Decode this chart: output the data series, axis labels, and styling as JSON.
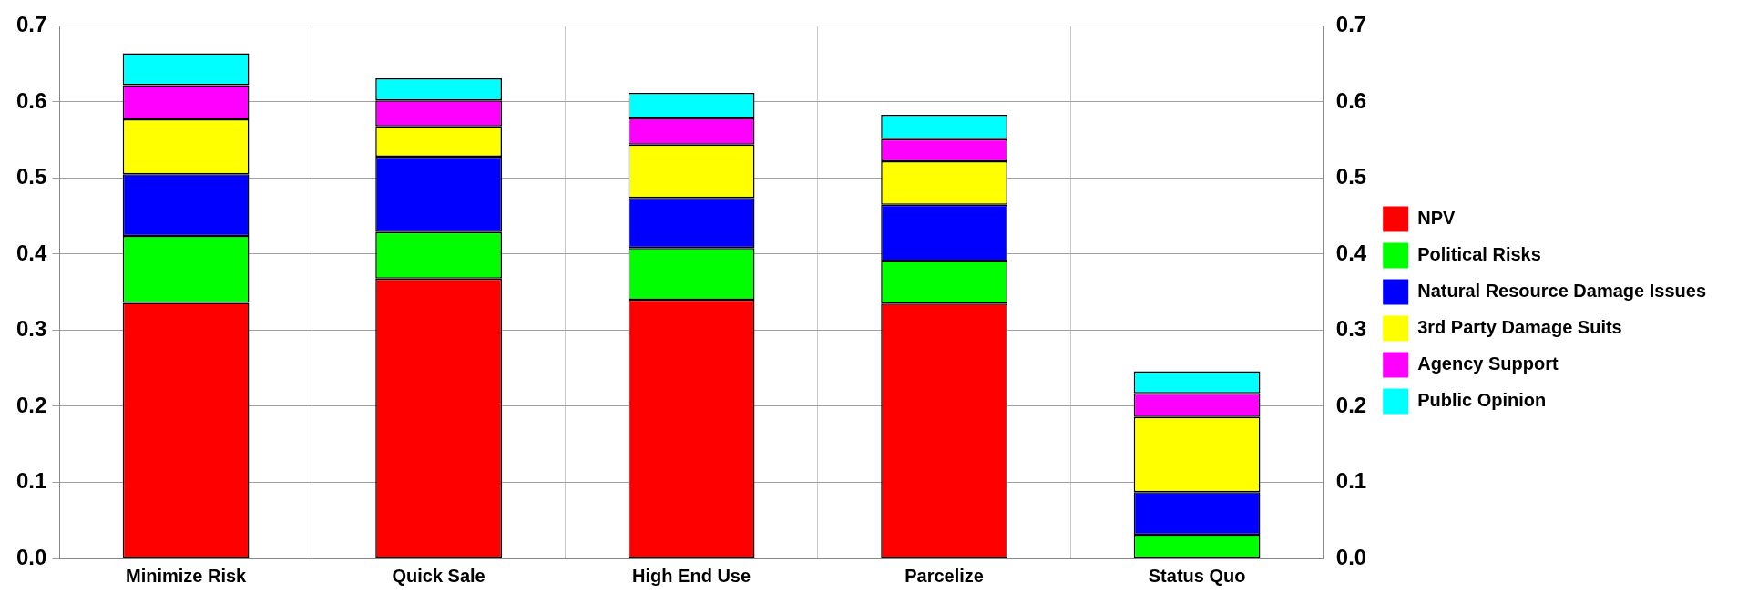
{
  "chart_data": {
    "type": "bar",
    "stacked": true,
    "categories": [
      "Minimize Risk",
      "Quick Sale",
      "High End Use",
      "Parcelize",
      "Status Quo"
    ],
    "series": [
      {
        "name": "NPV",
        "color": "#ff0000",
        "values": [
          0.336,
          0.368,
          0.34,
          0.335,
          0
        ]
      },
      {
        "name": "Political Risks",
        "color": "#00ff00",
        "values": [
          0.088,
          0.061,
          0.068,
          0.056,
          0.031
        ]
      },
      {
        "name": "Natural Resource Damage Issues",
        "color": "#0000ff",
        "values": [
          0.081,
          0.099,
          0.066,
          0.074,
          0.056
        ]
      },
      {
        "name": "3rd Party Damage Suits",
        "color": "#ffff00",
        "values": [
          0.072,
          0.04,
          0.07,
          0.057,
          0.099
        ]
      },
      {
        "name": "Agency Support",
        "color": "#ff00ff",
        "values": [
          0.045,
          0.034,
          0.035,
          0.029,
          0.031
        ]
      },
      {
        "name": "Public Opinion",
        "color": "#00ffff",
        "values": [
          0.042,
          0.029,
          0.033,
          0.032,
          0.029
        ]
      }
    ],
    "ylim": [
      0,
      0.7
    ],
    "yticks": [
      {
        "value": 0,
        "label": "0.0"
      },
      0.1,
      0.2,
      0.3,
      0.4,
      0.5,
      0.6,
      0.7
    ],
    "y2lim": [
      0,
      0.7
    ],
    "y2ticks": [
      {
        "value": 0,
        "label": "0.0"
      },
      0.1,
      0.2,
      0.3,
      0.4,
      0.5,
      0.6,
      0.7
    ],
    "grid": true,
    "legend": "right"
  }
}
